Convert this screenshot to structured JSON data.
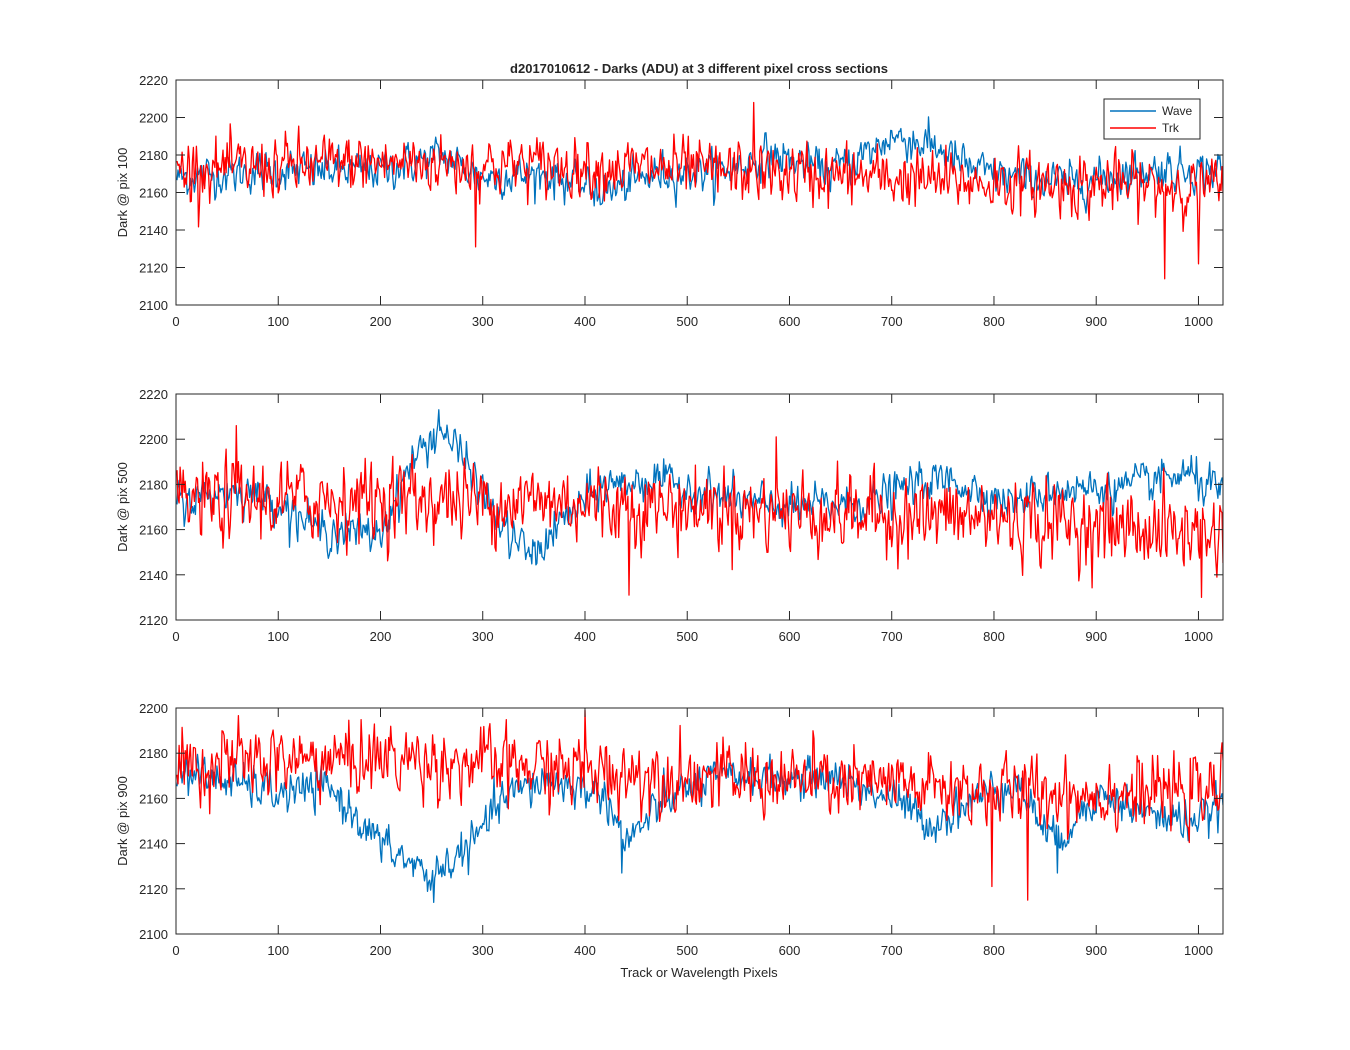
{
  "figure": {
    "title": "d2017010612 - Darks (ADU) at 3 different pixel cross sections",
    "xlabel": "Track or Wavelength Pixels"
  },
  "legend": {
    "location": "top-right of first panel",
    "entries": [
      {
        "name": "Wave",
        "color": "#0072BD"
      },
      {
        "name": "Trk",
        "color": "#FF0000"
      }
    ]
  },
  "chart_data": [
    {
      "type": "line",
      "ylabel": "Dark @ pix 100",
      "xlim": [
        0,
        1024
      ],
      "ylim": [
        2100,
        2220
      ],
      "xticks": [
        0,
        100,
        200,
        300,
        400,
        500,
        600,
        700,
        800,
        900,
        1000
      ],
      "yticks": [
        2100,
        2120,
        2140,
        2160,
        2180,
        2200,
        2220
      ],
      "grid": false,
      "series": [
        {
          "name": "Wave",
          "color": "#0072BD",
          "base": 2170,
          "noise": 6,
          "profile": [
            [
              0,
              2168
            ],
            [
              60,
              2170
            ],
            [
              120,
              2172
            ],
            [
              200,
              2172
            ],
            [
              260,
              2180
            ],
            [
              300,
              2168
            ],
            [
              360,
              2170
            ],
            [
              420,
              2160
            ],
            [
              470,
              2170
            ],
            [
              540,
              2172
            ],
            [
              580,
              2180
            ],
            [
              640,
              2172
            ],
            [
              680,
              2182
            ],
            [
              700,
              2190
            ],
            [
              740,
              2185
            ],
            [
              780,
              2172
            ],
            [
              820,
              2168
            ],
            [
              880,
              2165
            ],
            [
              950,
              2172
            ],
            [
              1024,
              2172
            ]
          ]
        },
        {
          "name": "Trk",
          "color": "#FF0000",
          "base": 2172,
          "noise": 9,
          "profile": [
            [
              0,
              2172
            ],
            [
              200,
              2176
            ],
            [
              400,
              2174
            ],
            [
              600,
              2170
            ],
            [
              800,
              2165
            ],
            [
              1024,
              2163
            ]
          ],
          "spikes": [
            [
              293,
              2131
            ],
            [
              565,
              2208
            ],
            [
              967,
              2114
            ],
            [
              1000,
              2122
            ]
          ]
        }
      ]
    },
    {
      "type": "line",
      "ylabel": "Dark @ pix 500",
      "xlim": [
        0,
        1024
      ],
      "ylim": [
        2120,
        2220
      ],
      "xticks": [
        0,
        100,
        200,
        300,
        400,
        500,
        600,
        700,
        800,
        900,
        1000
      ],
      "yticks": [
        2120,
        2140,
        2160,
        2180,
        2200,
        2220
      ],
      "grid": false,
      "series": [
        {
          "name": "Wave",
          "color": "#0072BD",
          "base": 2170,
          "noise": 5,
          "profile": [
            [
              0,
              2172
            ],
            [
              60,
              2178
            ],
            [
              100,
              2172
            ],
            [
              140,
              2160
            ],
            [
              200,
              2158
            ],
            [
              230,
              2190
            ],
            [
              260,
              2205
            ],
            [
              290,
              2185
            ],
            [
              320,
              2160
            ],
            [
              350,
              2148
            ],
            [
              380,
              2165
            ],
            [
              420,
              2180
            ],
            [
              470,
              2182
            ],
            [
              520,
              2176
            ],
            [
              560,
              2172
            ],
            [
              600,
              2170
            ],
            [
              680,
              2172
            ],
            [
              720,
              2180
            ],
            [
              760,
              2182
            ],
            [
              790,
              2176
            ],
            [
              820,
              2172
            ],
            [
              860,
              2178
            ],
            [
              920,
              2178
            ],
            [
              960,
              2182
            ],
            [
              990,
              2184
            ],
            [
              1024,
              2176
            ]
          ],
          "spikes": [
            [
              257,
              2213
            ]
          ]
        },
        {
          "name": "Trk",
          "color": "#FF0000",
          "base": 2170,
          "noise": 10,
          "profile": [
            [
              0,
              2172
            ],
            [
              200,
              2174
            ],
            [
              400,
              2172
            ],
            [
              600,
              2168
            ],
            [
              800,
              2165
            ],
            [
              1024,
              2158
            ]
          ],
          "spikes": [
            [
              59,
              2206
            ],
            [
              443,
              2131
            ],
            [
              587,
              2201
            ],
            [
              1003,
              2130
            ]
          ]
        }
      ]
    },
    {
      "type": "line",
      "ylabel": "Dark @ pix 900",
      "xlim": [
        0,
        1024
      ],
      "ylim": [
        2100,
        2200
      ],
      "xticks": [
        0,
        100,
        200,
        300,
        400,
        500,
        600,
        700,
        800,
        900,
        1000
      ],
      "yticks": [
        2100,
        2120,
        2140,
        2160,
        2180,
        2200
      ],
      "grid": false,
      "series": [
        {
          "name": "Wave",
          "color": "#0072BD",
          "base": 2165,
          "noise": 5,
          "profile": [
            [
              0,
              2172
            ],
            [
              50,
              2168
            ],
            [
              100,
              2162
            ],
            [
              150,
              2165
            ],
            [
              200,
              2140
            ],
            [
              250,
              2125
            ],
            [
              290,
              2140
            ],
            [
              320,
              2160
            ],
            [
              360,
              2168
            ],
            [
              420,
              2162
            ],
            [
              440,
              2140
            ],
            [
              480,
              2160
            ],
            [
              520,
              2168
            ],
            [
              560,
              2170
            ],
            [
              600,
              2168
            ],
            [
              640,
              2170
            ],
            [
              700,
              2160
            ],
            [
              740,
              2148
            ],
            [
              780,
              2160
            ],
            [
              820,
              2168
            ],
            [
              860,
              2140
            ],
            [
              900,
              2162
            ],
            [
              960,
              2152
            ],
            [
              1000,
              2150
            ],
            [
              1024,
              2158
            ]
          ],
          "spikes": [
            [
              252,
              2114
            ],
            [
              436,
              2127
            ],
            [
              862,
              2127
            ]
          ]
        },
        {
          "name": "Trk",
          "color": "#FF0000",
          "base": 2172,
          "noise": 9,
          "profile": [
            [
              0,
              2175
            ],
            [
              200,
              2178
            ],
            [
              400,
              2172
            ],
            [
              600,
              2168
            ],
            [
              800,
              2163
            ],
            [
              1024,
              2162
            ]
          ],
          "spikes": [
            [
              798,
              2121
            ],
            [
              833,
              2115
            ],
            [
              400,
              2199
            ]
          ]
        }
      ]
    }
  ]
}
